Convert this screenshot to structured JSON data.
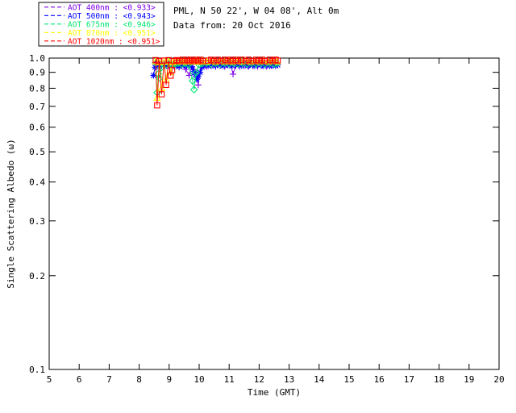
{
  "header": {
    "line1": "PML, N 50 22', W 04 08', Alt 0m",
    "line2": "Data from: 20 Oct 2016"
  },
  "chart_data": {
    "type": "line",
    "title": "",
    "xlabel": "Time (GMT)",
    "ylabel": "Single Scattering Albedo (ω)",
    "xlim": [
      5,
      20
    ],
    "ylim": [
      0.1,
      1.0
    ],
    "yscale": "log",
    "grid": false,
    "legend_position": "top-left-outside",
    "xticks": [
      5,
      6,
      7,
      8,
      9,
      10,
      11,
      12,
      13,
      14,
      15,
      16,
      17,
      18,
      19,
      20
    ],
    "xtick_labels": [
      "5",
      "6",
      "7",
      "8",
      "9",
      "10",
      "11",
      "12",
      "13",
      "14",
      "15",
      "16",
      "17",
      "18",
      "19",
      "20"
    ],
    "yticks": [
      1.0,
      0.9,
      0.8,
      0.7,
      0.6,
      0.5,
      0.4,
      0.3,
      0.2,
      0.1
    ],
    "ytick_labels": [
      "1.0",
      "0.9",
      "0.8",
      "0.7",
      "0.6",
      "0.5",
      "0.4",
      "0.3",
      "0.2",
      "0.1"
    ],
    "axis_color": "#000000",
    "background_color": "#ffffff",
    "series": [
      {
        "name": "AOT 400nm",
        "wavelength": "400nm",
        "mean": "<0.933>",
        "legend_label": "AOT  400nm : <0.933>",
        "color": "#7D00E6",
        "marker": "plus",
        "points": [
          [
            8.53,
            0.965
          ],
          [
            8.58,
            0.975
          ],
          [
            8.63,
            0.955
          ],
          [
            8.68,
            0.965
          ],
          [
            8.75,
            0.955
          ],
          [
            8.83,
            0.945
          ],
          [
            8.92,
            0.955
          ],
          [
            9.0,
            0.945
          ],
          [
            9.08,
            0.95
          ],
          [
            9.17,
            0.94
          ],
          [
            9.25,
            0.945
          ],
          [
            9.33,
            0.935
          ],
          [
            9.42,
            0.945
          ],
          [
            9.55,
            0.92
          ],
          [
            9.67,
            0.88
          ],
          [
            9.75,
            0.935
          ],
          [
            9.83,
            0.92
          ],
          [
            9.9,
            0.9
          ],
          [
            9.97,
            0.82
          ],
          [
            10.05,
            0.935
          ],
          [
            10.15,
            0.945
          ],
          [
            10.25,
            0.94
          ],
          [
            10.4,
            0.945
          ],
          [
            10.55,
            0.94
          ],
          [
            10.7,
            0.945
          ],
          [
            10.85,
            0.94
          ],
          [
            10.95,
            0.95
          ],
          [
            11.05,
            0.955
          ],
          [
            11.13,
            0.888
          ],
          [
            11.22,
            0.945
          ],
          [
            11.35,
            0.94
          ],
          [
            11.5,
            0.945
          ],
          [
            11.65,
            0.94
          ],
          [
            11.8,
            0.945
          ],
          [
            11.95,
            0.94
          ],
          [
            12.1,
            0.945
          ],
          [
            12.25,
            0.94
          ],
          [
            12.4,
            0.945
          ]
        ]
      },
      {
        "name": "AOT 500nm",
        "wavelength": "500nm",
        "mean": "<0.943>",
        "legend_label": "AOT  500nm : <0.943>",
        "color": "#0000FF",
        "marker": "asterisk",
        "points": [
          [
            8.48,
            0.88
          ],
          [
            8.53,
            0.935
          ],
          [
            8.58,
            0.955
          ],
          [
            8.63,
            0.945
          ],
          [
            8.68,
            0.96
          ],
          [
            8.75,
            0.945
          ],
          [
            8.83,
            0.955
          ],
          [
            8.92,
            0.945
          ],
          [
            9.0,
            0.955
          ],
          [
            9.08,
            0.945
          ],
          [
            9.17,
            0.955
          ],
          [
            9.25,
            0.945
          ],
          [
            9.33,
            0.94
          ],
          [
            9.42,
            0.95
          ],
          [
            9.5,
            0.955
          ],
          [
            9.58,
            0.945
          ],
          [
            9.67,
            0.95
          ],
          [
            9.75,
            0.94
          ],
          [
            9.82,
            0.905
          ],
          [
            9.87,
            0.885
          ],
          [
            9.92,
            0.855
          ],
          [
            9.97,
            0.875
          ],
          [
            10.03,
            0.9
          ],
          [
            10.1,
            0.935
          ],
          [
            10.2,
            0.95
          ],
          [
            10.3,
            0.945
          ],
          [
            10.45,
            0.95
          ],
          [
            10.55,
            0.945
          ],
          [
            10.7,
            0.95
          ],
          [
            10.8,
            0.945
          ],
          [
            10.9,
            0.955
          ],
          [
            11.0,
            0.95
          ],
          [
            11.1,
            0.945
          ],
          [
            11.2,
            0.955
          ],
          [
            11.3,
            0.95
          ],
          [
            11.42,
            0.945
          ],
          [
            11.55,
            0.955
          ],
          [
            11.62,
            0.945
          ],
          [
            11.7,
            0.96
          ],
          [
            11.78,
            0.95
          ],
          [
            11.85,
            0.945
          ],
          [
            11.95,
            0.955
          ],
          [
            12.05,
            0.95
          ],
          [
            12.15,
            0.945
          ],
          [
            12.25,
            0.955
          ],
          [
            12.35,
            0.945
          ],
          [
            12.45,
            0.95
          ],
          [
            12.55,
            0.945
          ],
          [
            12.62,
            0.95
          ]
        ]
      },
      {
        "name": "AOT 675nm",
        "wavelength": "675nm",
        "mean": "<0.946>",
        "legend_label": "AOT  675nm : <0.946>",
        "color": "#00E673",
        "marker": "diamond",
        "points": [
          [
            8.55,
            0.965
          ],
          [
            8.6,
            0.775
          ],
          [
            8.64,
            0.89
          ],
          [
            8.68,
            0.862
          ],
          [
            8.73,
            0.93
          ],
          [
            8.8,
            0.958
          ],
          [
            8.9,
            0.952
          ],
          [
            9.0,
            0.96
          ],
          [
            9.1,
            0.95
          ],
          [
            9.2,
            0.958
          ],
          [
            9.3,
            0.963
          ],
          [
            9.42,
            0.955
          ],
          [
            9.53,
            0.962
          ],
          [
            9.65,
            0.952
          ],
          [
            9.78,
            0.845
          ],
          [
            9.83,
            0.792
          ],
          [
            9.9,
            0.898
          ],
          [
            10.0,
            0.952
          ],
          [
            10.1,
            0.96
          ],
          [
            10.25,
            0.963
          ],
          [
            10.4,
            0.957
          ],
          [
            10.55,
            0.962
          ],
          [
            10.7,
            0.957
          ],
          [
            10.85,
            0.963
          ],
          [
            11.0,
            0.958
          ],
          [
            11.15,
            0.963
          ],
          [
            11.3,
            0.957
          ],
          [
            11.45,
            0.962
          ],
          [
            11.6,
            0.957
          ],
          [
            11.75,
            0.962
          ],
          [
            11.9,
            0.958
          ],
          [
            12.05,
            0.962
          ],
          [
            12.2,
            0.957
          ],
          [
            12.35,
            0.962
          ],
          [
            12.5,
            0.958
          ],
          [
            12.6,
            0.962
          ]
        ]
      },
      {
        "name": "AOT 870nm",
        "wavelength": "870nm",
        "mean": "<0.951>",
        "legend_label": "AOT  870nm : <0.951>",
        "color": "#FFFF00",
        "marker": "triangle",
        "points": [
          [
            8.55,
            0.975
          ],
          [
            8.6,
            0.745
          ],
          [
            8.67,
            0.968
          ],
          [
            8.75,
            0.8
          ],
          [
            8.83,
            0.972
          ],
          [
            8.9,
            0.852
          ],
          [
            8.98,
            0.975
          ],
          [
            9.05,
            0.9
          ],
          [
            9.12,
            0.968
          ],
          [
            9.2,
            0.975
          ],
          [
            9.3,
            0.978
          ],
          [
            9.42,
            0.972
          ],
          [
            9.5,
            0.978
          ],
          [
            9.6,
            0.972
          ],
          [
            9.7,
            0.978
          ],
          [
            9.8,
            0.972
          ],
          [
            9.9,
            0.978
          ],
          [
            10.0,
            0.972
          ],
          [
            10.1,
            0.978
          ],
          [
            10.25,
            0.973
          ],
          [
            10.4,
            0.978
          ],
          [
            10.55,
            0.972
          ],
          [
            10.7,
            0.978
          ],
          [
            10.85,
            0.973
          ],
          [
            11.0,
            0.978
          ],
          [
            11.1,
            0.972
          ],
          [
            11.25,
            0.978
          ],
          [
            11.4,
            0.973
          ],
          [
            11.55,
            0.978
          ],
          [
            11.7,
            0.972
          ],
          [
            11.85,
            0.978
          ],
          [
            12.0,
            0.973
          ],
          [
            12.15,
            0.978
          ],
          [
            12.3,
            0.972
          ],
          [
            12.45,
            0.978
          ],
          [
            12.6,
            0.973
          ]
        ]
      },
      {
        "name": "AOT 1020nm",
        "wavelength": "1020nm",
        "mean": "<0.951>",
        "legend_label": "AOT 1020nm : <0.951>",
        "color": "#FF0000",
        "marker": "square",
        "points": [
          [
            8.55,
            0.985
          ],
          [
            8.6,
            0.705
          ],
          [
            8.67,
            0.978
          ],
          [
            8.75,
            0.765
          ],
          [
            8.83,
            0.982
          ],
          [
            8.9,
            0.82
          ],
          [
            8.98,
            0.985
          ],
          [
            9.05,
            0.878
          ],
          [
            9.1,
            0.915
          ],
          [
            9.15,
            0.978
          ],
          [
            9.25,
            0.985
          ],
          [
            9.35,
            0.978
          ],
          [
            9.45,
            0.988
          ],
          [
            9.52,
            0.978
          ],
          [
            9.6,
            0.988
          ],
          [
            9.68,
            0.978
          ],
          [
            9.75,
            0.988
          ],
          [
            9.82,
            0.978
          ],
          [
            9.9,
            0.988
          ],
          [
            9.97,
            0.978
          ],
          [
            10.05,
            0.988
          ],
          [
            10.12,
            0.978
          ],
          [
            10.3,
            0.982
          ],
          [
            10.4,
            0.988
          ],
          [
            10.5,
            0.978
          ],
          [
            10.62,
            0.988
          ],
          [
            10.72,
            0.978
          ],
          [
            10.85,
            0.988
          ],
          [
            10.95,
            0.978
          ],
          [
            11.05,
            0.988
          ],
          [
            11.12,
            0.978
          ],
          [
            11.22,
            0.988
          ],
          [
            11.3,
            0.978
          ],
          [
            11.42,
            0.988
          ],
          [
            11.55,
            0.978
          ],
          [
            11.65,
            0.988
          ],
          [
            11.78,
            0.978
          ],
          [
            11.9,
            0.988
          ],
          [
            12.0,
            0.978
          ],
          [
            12.1,
            0.988
          ],
          [
            12.2,
            0.978
          ],
          [
            12.35,
            0.988
          ],
          [
            12.45,
            0.978
          ],
          [
            12.55,
            0.988
          ],
          [
            12.62,
            0.982
          ]
        ]
      }
    ]
  }
}
